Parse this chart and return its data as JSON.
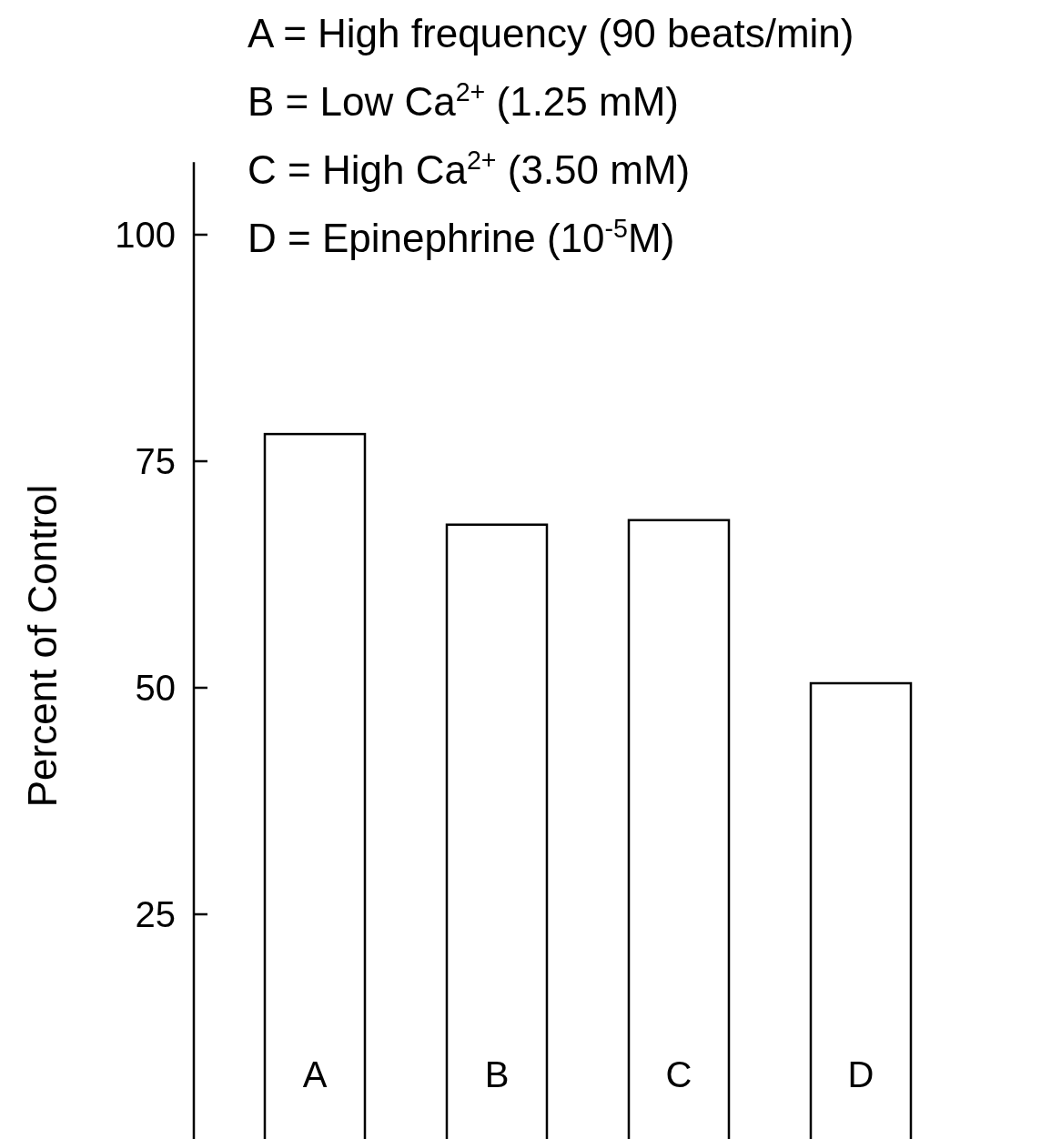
{
  "chart_data": {
    "type": "bar",
    "ylabel": "Percent of Control",
    "categories": [
      "A",
      "B",
      "C",
      "D"
    ],
    "values": [
      78,
      68,
      68.5,
      50.5
    ],
    "color": "#ffffff",
    "ylim": [
      0,
      108
    ],
    "yticks": [
      25,
      50,
      75,
      100
    ],
    "grid": false,
    "annotations": [
      "A = High frequency (90 beats/min)",
      "B = Low Ca$^{2+}$ (1.25 mM)",
      "C = High Ca$^{2+}$ (3.50 mM)",
      "D = Epinephrine (10$^{-5}$M)"
    ]
  }
}
